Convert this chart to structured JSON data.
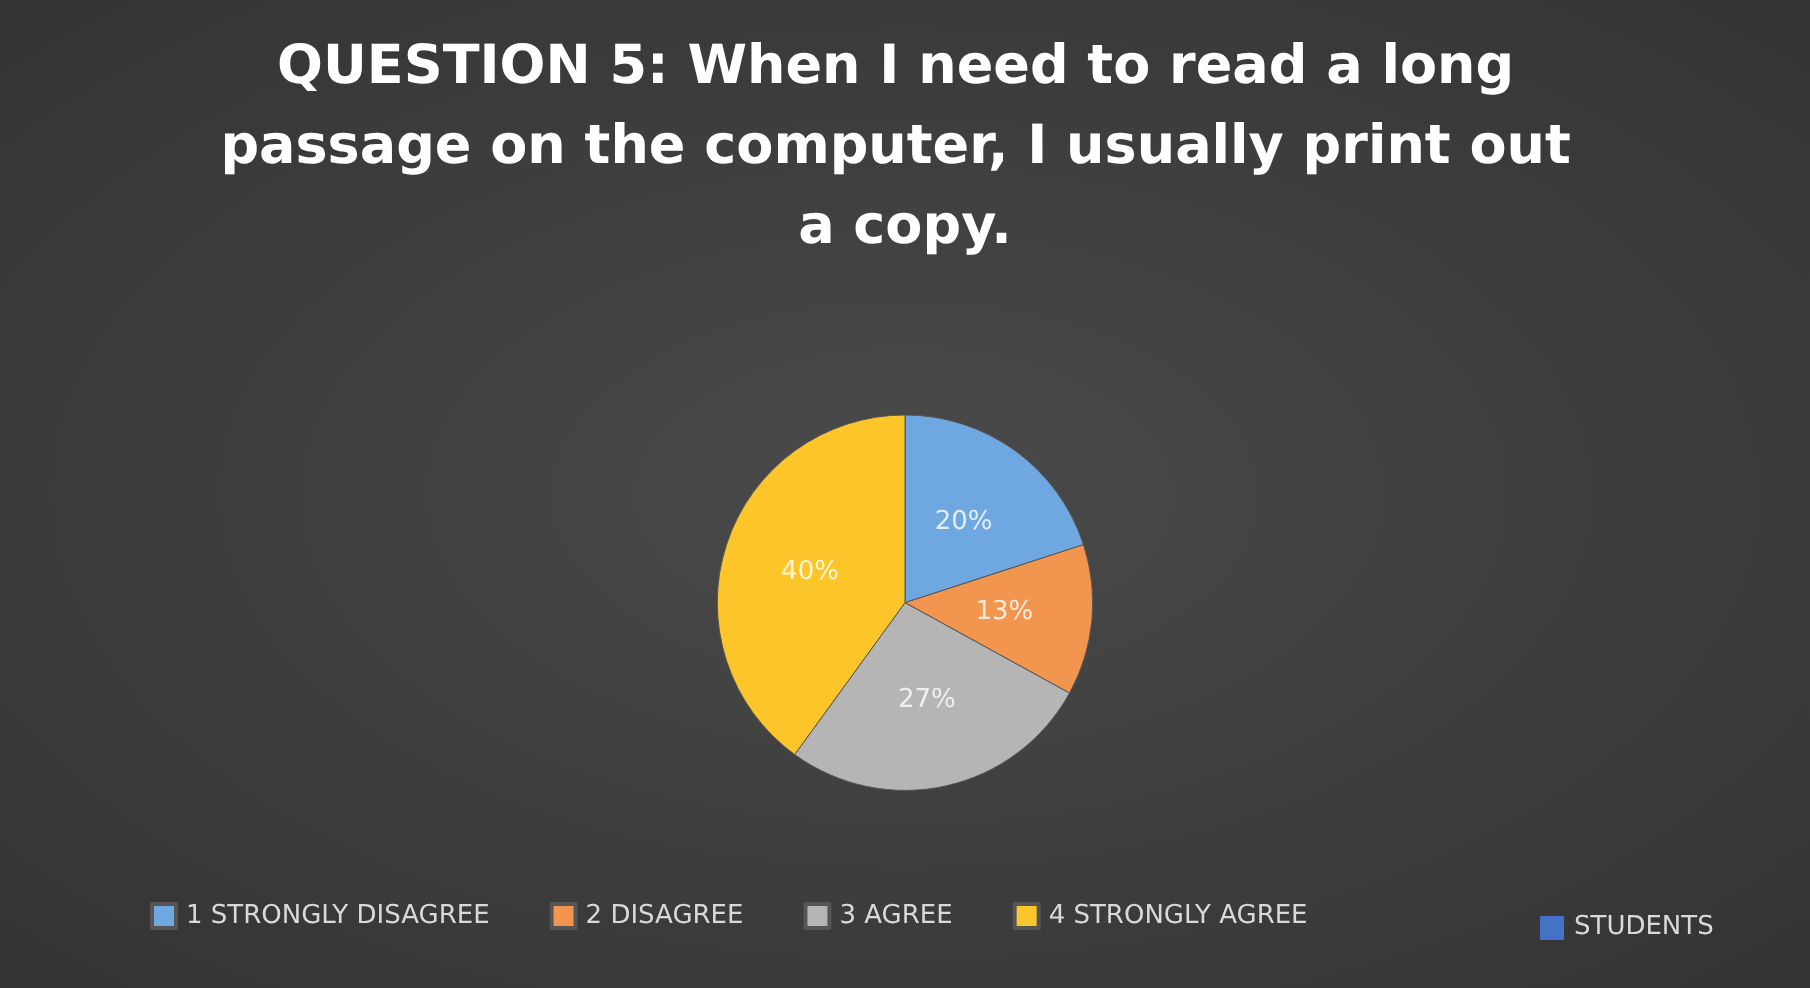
{
  "chart_data": {
    "type": "pie",
    "title": "QUESTION 5: When I need to read a long passage on the computer, I usually print out a copy.",
    "categories": [
      "1 STRONGLY DISAGREE",
      "2 DISAGREE",
      "3 AGREE",
      "4 STRONGLY AGREE"
    ],
    "series": [
      {
        "name": "STUDENTS",
        "color": "#4472c4",
        "values": [
          20,
          13,
          27,
          40
        ],
        "value_labels": [
          "20%",
          "13%",
          "27%",
          "40%"
        ]
      }
    ],
    "colors": [
      "#6fa8e0",
      "#f2954f",
      "#b5b5b5",
      "#fcc62a"
    ],
    "legend": "bottom"
  }
}
